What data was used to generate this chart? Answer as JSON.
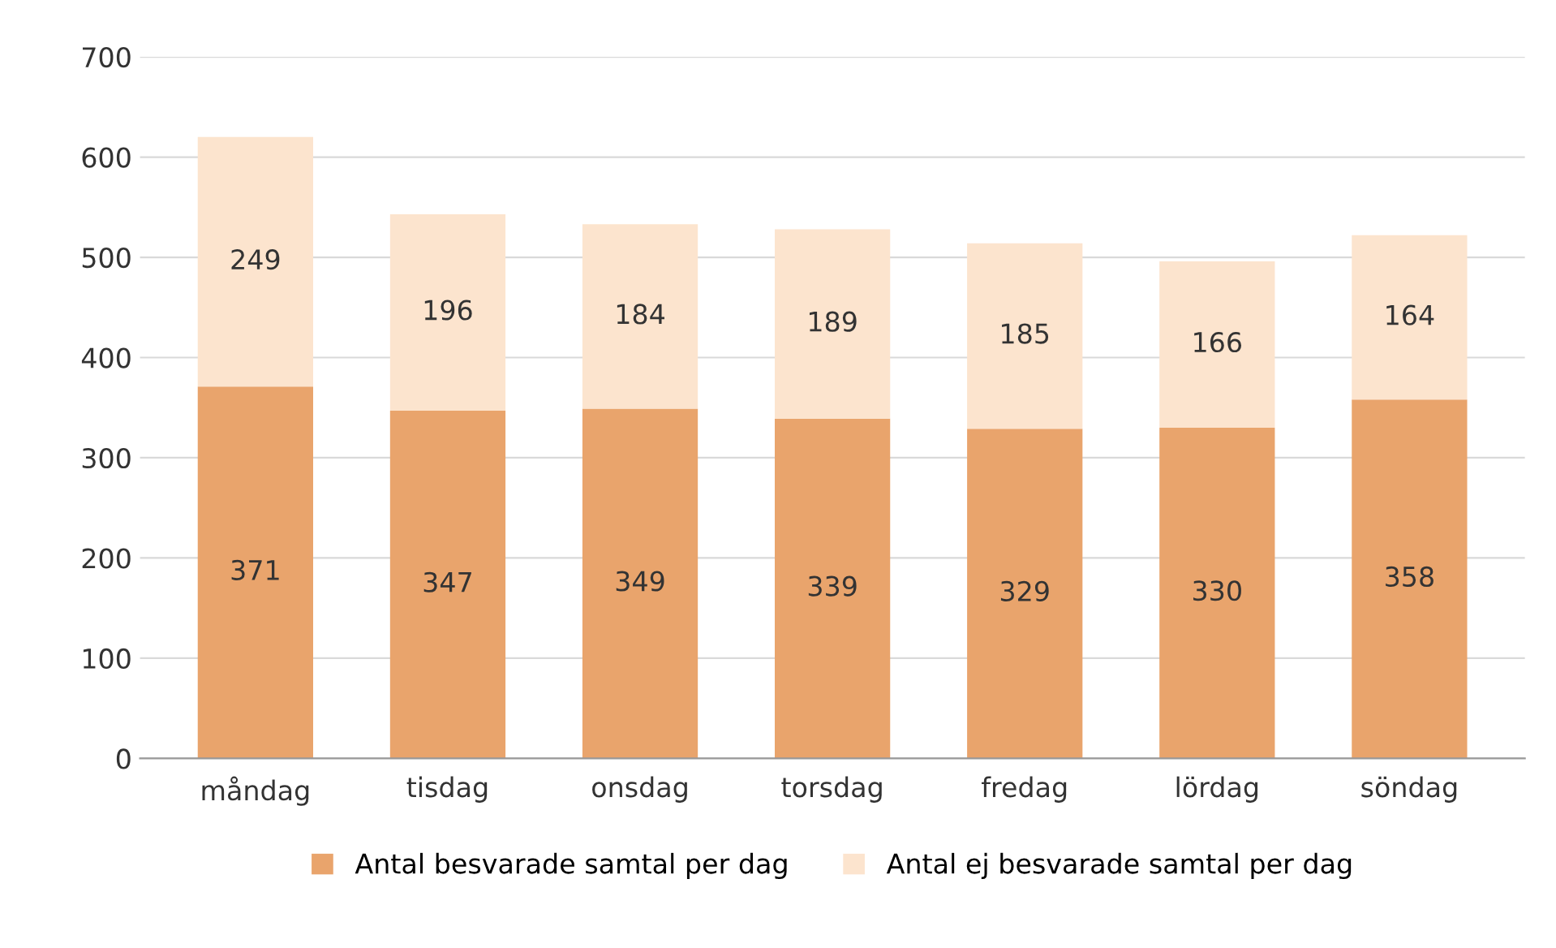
{
  "chart_data": {
    "type": "bar",
    "stacked": true,
    "categories": [
      "måndag",
      "tisdag",
      "onsdag",
      "torsdag",
      "fredag",
      "lördag",
      "söndag"
    ],
    "series": [
      {
        "name": "Antal besvarade samtal per dag",
        "color": "#e9a46c",
        "values": [
          371,
          347,
          349,
          339,
          329,
          330,
          358
        ]
      },
      {
        "name": "Antal ej besvarade samtal per dag",
        "color": "#fce4ce",
        "values": [
          249,
          196,
          184,
          189,
          185,
          166,
          164
        ]
      }
    ],
    "ylim": [
      0,
      700
    ],
    "yticks": [
      0,
      100,
      200,
      300,
      400,
      500,
      600,
      700
    ],
    "grid": "y",
    "legend": "bottom",
    "data_labels": true
  }
}
